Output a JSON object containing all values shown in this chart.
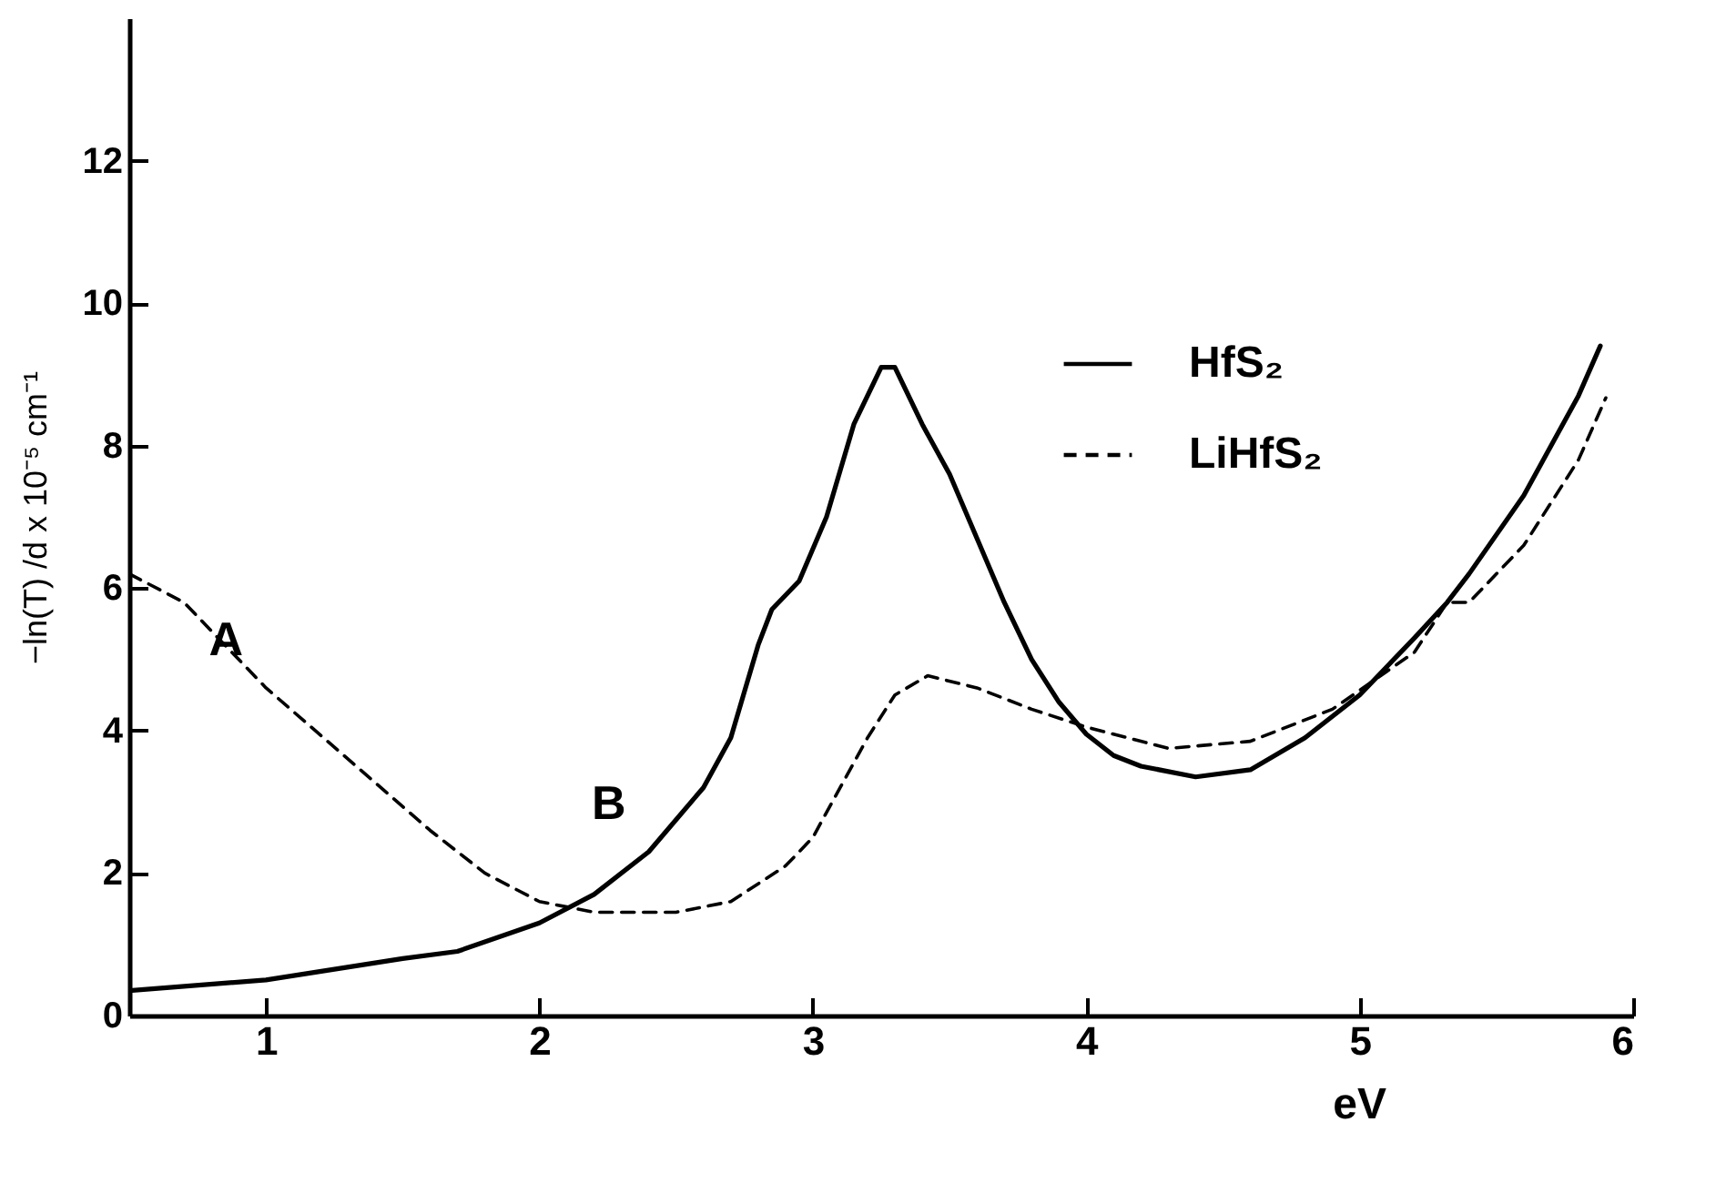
{
  "chart_data": {
    "type": "line",
    "xlabel": "eV",
    "ylabel": "−ln(T) /d x 10⁻⁵  cm⁻¹",
    "xlim": [
      0.5,
      6
    ],
    "ylim": [
      0,
      14
    ],
    "xticks": [
      1,
      2,
      3,
      4,
      5,
      6
    ],
    "yticks": [
      0,
      2,
      4,
      6,
      8,
      10,
      12
    ],
    "grid": false,
    "legend": "top right",
    "marker": "none",
    "annotations": [
      {
        "text": "A",
        "x": 1.0,
        "y": 4.6
      },
      {
        "text": "B",
        "x": 2.4,
        "y": 2.3
      }
    ],
    "series": [
      {
        "name": "HfS₂",
        "color": "#000000",
        "line_style": "solid",
        "x": [
          0.5,
          1.0,
          1.5,
          1.7,
          2.0,
          2.2,
          2.4,
          2.6,
          2.7,
          2.8,
          2.85,
          2.95,
          3.05,
          3.15,
          3.25,
          3.3,
          3.4,
          3.5,
          3.6,
          3.7,
          3.8,
          3.9,
          4.0,
          4.1,
          4.2,
          4.4,
          4.6,
          4.8,
          5.0,
          5.2,
          5.32,
          5.4,
          5.6,
          5.8,
          5.88
        ],
        "values": [
          0.35,
          0.5,
          0.8,
          0.9,
          1.3,
          1.7,
          2.3,
          3.2,
          3.9,
          5.2,
          5.7,
          6.1,
          7.0,
          8.3,
          9.1,
          9.1,
          8.3,
          7.6,
          6.7,
          5.8,
          5.0,
          4.4,
          3.95,
          3.65,
          3.5,
          3.35,
          3.45,
          3.9,
          4.5,
          5.3,
          5.8,
          6.2,
          7.3,
          8.7,
          9.4
        ]
      },
      {
        "name": "LiHfS₂",
        "color": "#000000",
        "line_style": "dashed",
        "x": [
          0.5,
          0.7,
          1.0,
          1.3,
          1.6,
          1.8,
          2.0,
          2.2,
          2.5,
          2.7,
          2.9,
          3.0,
          3.1,
          3.2,
          3.3,
          3.42,
          3.6,
          3.8,
          4.0,
          4.3,
          4.6,
          4.9,
          5.2,
          5.32,
          5.4,
          5.6,
          5.8,
          5.9
        ],
        "values": [
          6.2,
          5.8,
          4.6,
          3.6,
          2.6,
          2.0,
          1.6,
          1.45,
          1.45,
          1.6,
          2.1,
          2.5,
          3.2,
          3.9,
          4.5,
          4.77,
          4.6,
          4.3,
          4.05,
          3.75,
          3.85,
          4.3,
          5.1,
          5.8,
          5.8,
          6.6,
          7.8,
          8.67
        ]
      }
    ]
  }
}
